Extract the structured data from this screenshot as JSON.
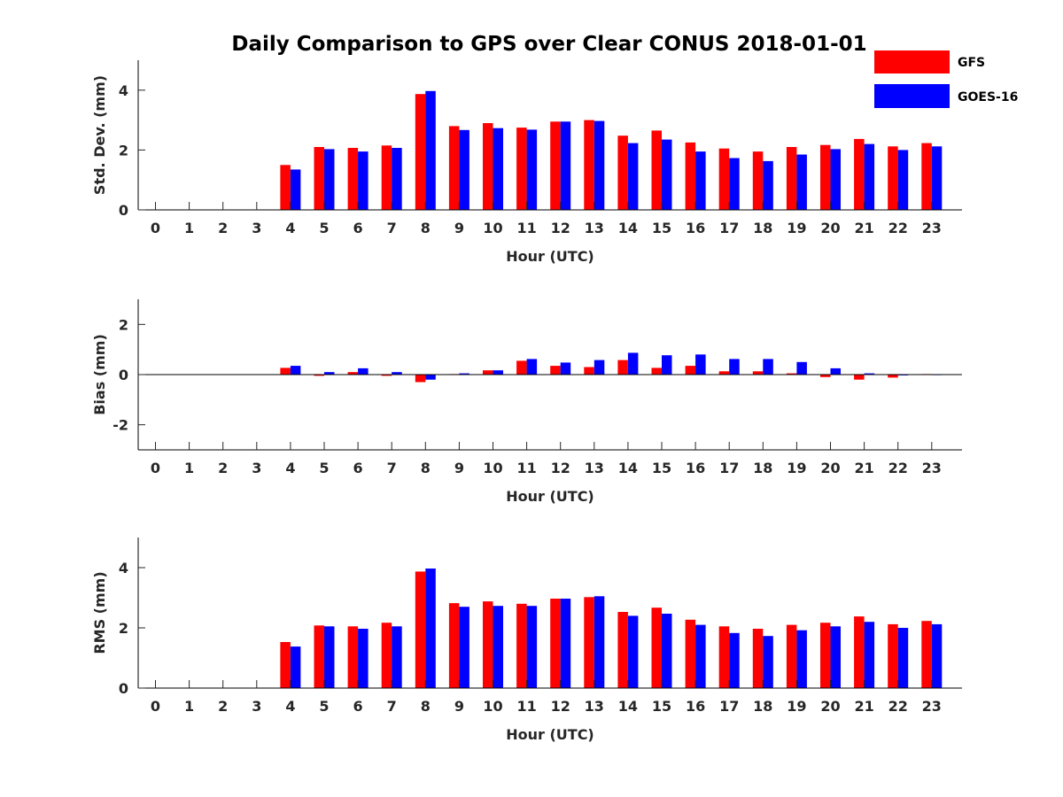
{
  "chart_data": {
    "type": "bar",
    "title": "Daily Comparison to GPS over Clear CONUS 2018-01-01",
    "categories": [
      "0",
      "1",
      "2",
      "3",
      "4",
      "5",
      "6",
      "7",
      "8",
      "9",
      "10",
      "11",
      "12",
      "13",
      "14",
      "15",
      "16",
      "17",
      "18",
      "19",
      "20",
      "21",
      "22",
      "23"
    ],
    "legend": {
      "position": "top-right",
      "entries": [
        {
          "name": "GFS",
          "color": "#ff0000"
        },
        {
          "name": "GOES-16",
          "color": "#0000ff"
        }
      ]
    },
    "subplots": [
      {
        "ylabel": "Std. Dev. (mm)",
        "xlabel": "Hour (UTC)",
        "ylim": [
          0,
          5
        ],
        "yticks": [
          0,
          2,
          4
        ],
        "series": [
          {
            "name": "GFS",
            "color": "#ff0000",
            "values": [
              null,
              null,
              null,
              null,
              1.5,
              2.1,
              2.07,
              2.15,
              3.87,
              2.8,
              2.9,
              2.75,
              2.95,
              3.0,
              2.48,
              2.65,
              2.25,
              2.05,
              1.95,
              2.1,
              2.17,
              2.37,
              2.12,
              2.23
            ]
          },
          {
            "name": "GOES-16",
            "color": "#0000ff",
            "values": [
              null,
              null,
              null,
              null,
              1.35,
              2.03,
              1.95,
              2.07,
              3.97,
              2.67,
              2.73,
              2.68,
              2.95,
              2.97,
              2.23,
              2.35,
              1.95,
              1.73,
              1.63,
              1.85,
              2.03,
              2.2,
              2.0,
              2.12
            ]
          }
        ]
      },
      {
        "ylabel": "Bias (mm)",
        "xlabel": "Hour (UTC)",
        "ylim": [
          -3,
          3
        ],
        "yticks": [
          -2,
          0,
          2
        ],
        "series": [
          {
            "name": "GFS",
            "color": "#ff0000",
            "values": [
              null,
              null,
              null,
              null,
              0.27,
              -0.05,
              0.1,
              -0.05,
              -0.3,
              0.02,
              0.17,
              0.55,
              0.35,
              0.3,
              0.58,
              0.27,
              0.35,
              0.13,
              0.13,
              0.05,
              -0.1,
              -0.2,
              -0.12,
              0.02
            ]
          },
          {
            "name": "GOES-16",
            "color": "#0000ff",
            "values": [
              null,
              null,
              null,
              null,
              0.35,
              0.1,
              0.25,
              0.1,
              -0.2,
              0.05,
              0.17,
              0.62,
              0.48,
              0.58,
              0.87,
              0.77,
              0.8,
              0.62,
              0.62,
              0.5,
              0.25,
              0.05,
              -0.03,
              -0.02
            ]
          }
        ]
      },
      {
        "ylabel": "RMS (mm)",
        "xlabel": "Hour (UTC)",
        "ylim": [
          0,
          5
        ],
        "yticks": [
          0,
          2,
          4
        ],
        "series": [
          {
            "name": "GFS",
            "color": "#ff0000",
            "values": [
              null,
              null,
              null,
              null,
              1.53,
              2.08,
              2.05,
              2.17,
              3.87,
              2.82,
              2.88,
              2.8,
              2.97,
              3.02,
              2.53,
              2.67,
              2.27,
              2.05,
              1.97,
              2.1,
              2.17,
              2.38,
              2.12,
              2.23
            ]
          },
          {
            "name": "GOES-16",
            "color": "#0000ff",
            "values": [
              null,
              null,
              null,
              null,
              1.38,
              2.05,
              1.97,
              2.05,
              3.97,
              2.7,
              2.73,
              2.73,
              2.97,
              3.05,
              2.4,
              2.47,
              2.1,
              1.83,
              1.73,
              1.92,
              2.05,
              2.2,
              2.0,
              2.12
            ]
          }
        ]
      }
    ]
  }
}
